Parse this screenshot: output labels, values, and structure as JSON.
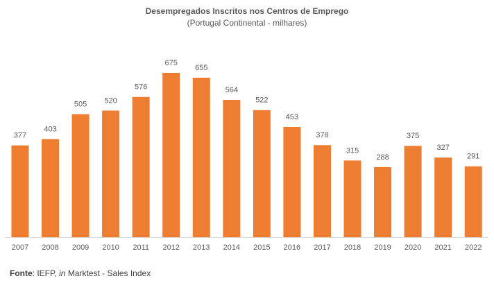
{
  "chart_data": {
    "type": "bar",
    "title": "Desempregados Inscritos nos Centros de Emprego",
    "subtitle": "(Portugal Continental - milhares)",
    "categories": [
      "2007",
      "2008",
      "2009",
      "2010",
      "2011",
      "2012",
      "2013",
      "2014",
      "2015",
      "2016",
      "2017",
      "2018",
      "2019",
      "2020",
      "2021",
      "2022"
    ],
    "values": [
      377,
      403,
      505,
      520,
      576,
      675,
      655,
      564,
      522,
      453,
      378,
      315,
      288,
      375,
      327,
      291
    ],
    "color": "#ed7d31",
    "source": [
      "Fonte",
      ": IEFP, ",
      "in",
      " Marktest - Sales Index"
    ]
  }
}
